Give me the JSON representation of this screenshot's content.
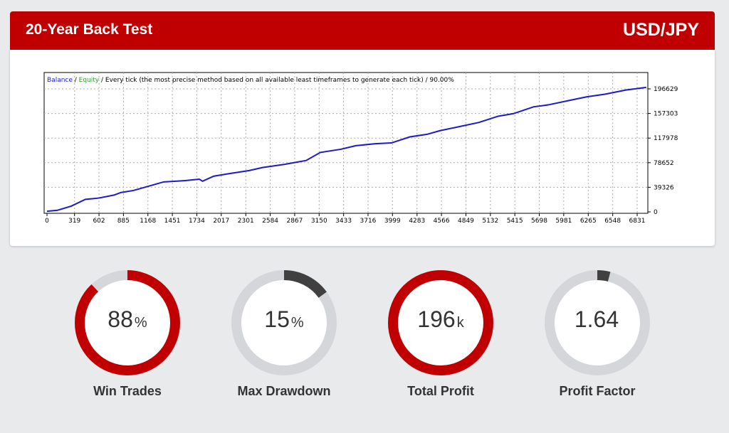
{
  "header": {
    "title": "20-Year Back Test",
    "pair": "USD/JPY"
  },
  "chart_data": {
    "type": "line",
    "legend": {
      "balance": "Balance",
      "sep1": " / ",
      "equity": "Equity",
      "rest": " / Every tick (the most precise method based on all available least timeframes to generate each tick) / 90.00%"
    },
    "x_ticks": [
      0,
      319,
      602,
      885,
      1168,
      1451,
      1734,
      2017,
      2301,
      2584,
      2867,
      3150,
      3433,
      3716,
      3999,
      4283,
      4566,
      4849,
      5132,
      5415,
      5698,
      5981,
      6265,
      6548,
      6831
    ],
    "y_ticks": [
      0,
      39326,
      78652,
      117978,
      157303,
      196629
    ],
    "xlim": [
      0,
      6980
    ],
    "ylim": [
      0,
      196629
    ],
    "grid": true,
    "series": [
      {
        "name": "Balance",
        "color": "#1a1acc",
        "x": [
          0,
          120,
          280,
          445,
          600,
          775,
          857,
          1000,
          1351,
          1600,
          1763,
          1800,
          1928,
          2100,
          2340,
          2500,
          2751,
          3000,
          3163,
          3400,
          3575,
          3800,
          3987,
          4200,
          4399,
          4550,
          4728,
          5000,
          5222,
          5400,
          5634,
          5800,
          6046,
          6250,
          6458,
          6700,
          6936
        ],
        "y": [
          1000,
          2500,
          11000,
          20000,
          23000,
          25000,
          31000,
          36000,
          47000,
          50000,
          50500,
          49000,
          57000,
          60000,
          67000,
          71000,
          76000,
          84000,
          95000,
          101000,
          104000,
          109000,
          112000,
          119000,
          124000,
          128000,
          135000,
          143000,
          152000,
          158000,
          168000,
          171000,
          180000,
          184000,
          189000,
          193000,
          199000
        ]
      }
    ]
  },
  "gauges": [
    {
      "value": "88",
      "unit": "%",
      "label": "Win Trades",
      "fraction": 0.88,
      "color": "#c00000"
    },
    {
      "value": "15",
      "unit": "%",
      "label": "Max Drawdown",
      "fraction": 0.15,
      "color": "#404040"
    },
    {
      "value": "196",
      "unit": "k",
      "label": "Total Profit",
      "fraction": 1.0,
      "color": "#c00000"
    },
    {
      "value": "1.64",
      "unit": "",
      "label": "Profit Factor",
      "fraction": 0.04,
      "color": "#404040"
    }
  ]
}
